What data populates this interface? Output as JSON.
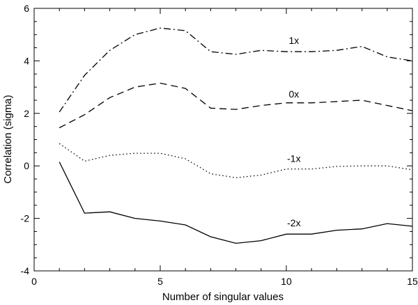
{
  "chart_data": {
    "type": "line",
    "title": "",
    "xlabel": "Number of singular values",
    "ylabel": "Correlation (sigma)",
    "xlim": [
      0,
      15
    ],
    "ylim": [
      -4,
      6
    ],
    "xticks": [
      0,
      5,
      10,
      15
    ],
    "yticks": [
      -4,
      -2,
      0,
      2,
      4,
      6
    ],
    "grid": false,
    "legend": "none",
    "x": [
      1,
      2,
      3,
      4,
      5,
      6,
      7,
      8,
      9,
      10,
      11,
      12,
      13,
      14,
      15
    ],
    "series": [
      {
        "name": "1x",
        "style": "dash-dot",
        "label_at": [
          10.3,
          4.65
        ],
        "values": [
          2.05,
          3.45,
          4.4,
          5.0,
          5.25,
          5.15,
          4.35,
          4.25,
          4.4,
          4.35,
          4.35,
          4.4,
          4.55,
          4.15,
          4.0
        ]
      },
      {
        "name": "0x",
        "style": "dashed",
        "label_at": [
          10.3,
          2.6
        ],
        "values": [
          1.45,
          1.95,
          2.6,
          3.0,
          3.15,
          2.95,
          2.2,
          2.15,
          2.3,
          2.4,
          2.4,
          2.45,
          2.5,
          2.3,
          2.1
        ]
      },
      {
        "name": "-1x",
        "style": "dotted",
        "label_at": [
          10.3,
          0.15
        ],
        "values": [
          0.85,
          0.18,
          0.4,
          0.48,
          0.48,
          0.27,
          -0.3,
          -0.45,
          -0.35,
          -0.12,
          -0.12,
          -0.02,
          0.0,
          0.0,
          -0.15
        ]
      },
      {
        "name": "-2x",
        "style": "solid",
        "label_at": [
          10.3,
          -2.3
        ],
        "values": [
          0.15,
          -1.8,
          -1.75,
          -2.0,
          -2.1,
          -2.25,
          -2.7,
          -2.95,
          -2.85,
          -2.6,
          -2.6,
          -2.45,
          -2.4,
          -2.2,
          -2.3
        ]
      }
    ]
  }
}
